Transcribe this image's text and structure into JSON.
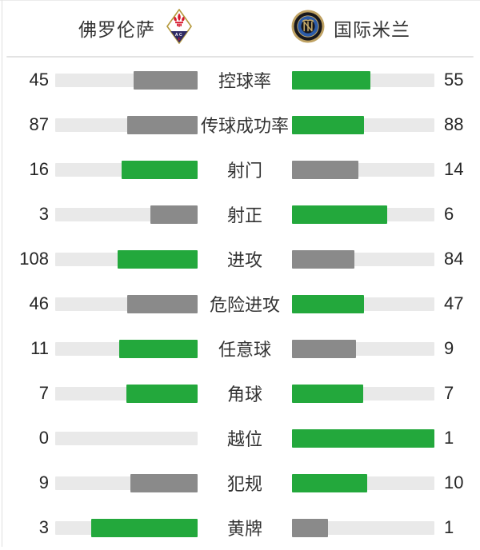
{
  "header": {
    "home_team": "佛罗伦萨",
    "away_team": "国际米兰",
    "home_crest": "fiorentina-crest",
    "away_crest": "inter-milan-crest"
  },
  "colors": {
    "green": "#23a83c",
    "gray": "#8a8a8a",
    "track": "#e9e9e9",
    "divider": "#e3e3e3",
    "text": "#262626"
  },
  "chart_data": {
    "type": "bar",
    "title": "佛罗伦萨 vs 国际米兰",
    "categories": [
      "控球率",
      "传球成功率",
      "射门",
      "射正",
      "进攻",
      "危险进攻",
      "任意球",
      "角球",
      "越位",
      "犯规",
      "黄牌"
    ],
    "series": [
      {
        "name": "佛罗伦萨",
        "values": [
          45,
          87,
          16,
          3,
          108,
          46,
          11,
          7,
          0,
          9,
          3
        ]
      },
      {
        "name": "国际米兰",
        "values": [
          55,
          88,
          14,
          6,
          84,
          47,
          9,
          7,
          1,
          10,
          1
        ]
      }
    ],
    "legend_position": "top",
    "grid": false
  },
  "stats": [
    {
      "label": "控球率",
      "home": "45",
      "away": "55",
      "home_pct": 45,
      "away_pct": 55,
      "winner": "away"
    },
    {
      "label": "传球成功率",
      "home": "87",
      "away": "88",
      "home_pct": 49.7,
      "away_pct": 50.3,
      "winner": "away"
    },
    {
      "label": "射门",
      "home": "16",
      "away": "14",
      "home_pct": 53.3,
      "away_pct": 46.7,
      "winner": "home"
    },
    {
      "label": "射正",
      "home": "3",
      "away": "6",
      "home_pct": 33.3,
      "away_pct": 66.7,
      "winner": "away"
    },
    {
      "label": "进攻",
      "home": "108",
      "away": "84",
      "home_pct": 56.3,
      "away_pct": 43.7,
      "winner": "home"
    },
    {
      "label": "危险进攻",
      "home": "46",
      "away": "47",
      "home_pct": 49.5,
      "away_pct": 50.5,
      "winner": "away"
    },
    {
      "label": "任意球",
      "home": "11",
      "away": "9",
      "home_pct": 55,
      "away_pct": 45,
      "winner": "home"
    },
    {
      "label": "角球",
      "home": "7",
      "away": "7",
      "home_pct": 50,
      "away_pct": 50,
      "winner": "both"
    },
    {
      "label": "越位",
      "home": "0",
      "away": "1",
      "home_pct": 0,
      "away_pct": 100,
      "winner": "away"
    },
    {
      "label": "犯规",
      "home": "9",
      "away": "10",
      "home_pct": 47.4,
      "away_pct": 52.6,
      "winner": "away"
    },
    {
      "label": "黄牌",
      "home": "3",
      "away": "1",
      "home_pct": 75,
      "away_pct": 25,
      "winner": "home"
    }
  ]
}
